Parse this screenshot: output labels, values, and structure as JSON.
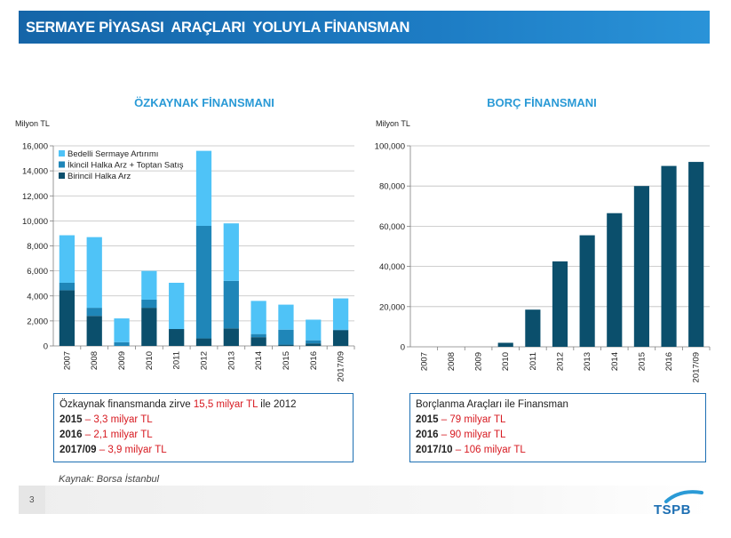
{
  "header": {
    "title": "SERMAYE PİYASASI  ARAÇLARI  YOLUYLA FİNANSMAN"
  },
  "left_chart": {
    "title": "ÖZKAYNAK FİNANSMANI",
    "unit": "Milyon TL",
    "note": {
      "line1_prefix": "Özkaynak finansmanda zirve ",
      "line1_highlight": "15,5 milyar TL",
      "line1_suffix": " ile 2012",
      "rows": [
        {
          "label": "2015",
          "sep": " – ",
          "value": "3,3 milyar TL"
        },
        {
          "label": "2016",
          "sep": " –  ",
          "value": "2,1 milyar TL"
        },
        {
          "label": "2017/09",
          "sep": " – ",
          "value": "3,9 milyar TL"
        }
      ]
    }
  },
  "right_chart": {
    "title": "BORÇ FİNANSMANI",
    "unit": "Milyon TL",
    "note": {
      "line1": "Borçlanma Araçları ile Finansman",
      "rows": [
        {
          "label": "2015",
          "sep": " – ",
          "value": "79 milyar TL"
        },
        {
          "label": "2016",
          "sep": " – ",
          "value": "90 milyar TL"
        },
        {
          "label": "2017/10",
          "sep": " – ",
          "value": "106 milyar TL"
        }
      ]
    }
  },
  "source": "Kaynak:  Borsa İstanbul",
  "footer": {
    "page_number": "3",
    "logo": "TSPB"
  },
  "colors": {
    "banner": "#1d7cc4",
    "title_blue": "#2a9ad6",
    "highlight_red": "#d71920",
    "bedelli": "#4fc3f7",
    "ikincil": "#1f86b8",
    "birincil": "#0b4f6c",
    "debt": "#0b4f6c"
  },
  "chart_data": [
    {
      "type": "bar",
      "stacked": true,
      "categories": [
        "2007",
        "2008",
        "2009",
        "2010",
        "2011",
        "2012",
        "2013",
        "2014",
        "2015",
        "2016",
        "2017/09"
      ],
      "series": [
        {
          "name": "Birincil Halka Arz",
          "color": "#0b4f6c",
          "values": [
            4450,
            2400,
            0,
            3050,
            1350,
            600,
            1400,
            700,
            100,
            200,
            1250
          ]
        },
        {
          "name": "İkincil Halka Arz + Toptan Satış",
          "color": "#1f86b8",
          "values": [
            600,
            650,
            300,
            650,
            0,
            9000,
            3800,
            250,
            1200,
            250,
            50
          ]
        },
        {
          "name": "Bedelli Sermaye Artırımı",
          "color": "#4fc3f7",
          "values": [
            3800,
            5650,
            1900,
            2300,
            3700,
            6000,
            4600,
            2650,
            2000,
            1650,
            2500
          ]
        }
      ],
      "ylim": [
        0,
        16000
      ],
      "yticks": [
        0,
        2000,
        4000,
        6000,
        8000,
        10000,
        12000,
        14000,
        16000
      ],
      "ytick_labels": [
        "0",
        "2,000",
        "4,000",
        "6,000",
        "8,000",
        "10,000",
        "12,000",
        "14,000",
        "16,000"
      ],
      "legend": "top-left"
    },
    {
      "type": "bar",
      "categories": [
        "2007",
        "2008",
        "2009",
        "2010",
        "2011",
        "2012",
        "2013",
        "2014",
        "2015",
        "2016",
        "2017/09"
      ],
      "series": [
        {
          "color": "#0b4f6c",
          "values": [
            0,
            0,
            0,
            2000,
            18500,
            42500,
            55500,
            66500,
            80000,
            90000,
            92000
          ]
        }
      ],
      "ylim": [
        0,
        100000
      ],
      "yticks": [
        0,
        20000,
        40000,
        60000,
        80000,
        100000
      ],
      "ytick_labels": [
        "0",
        "20,000",
        "40,000",
        "60,000",
        "80,000",
        "100,000"
      ]
    }
  ]
}
